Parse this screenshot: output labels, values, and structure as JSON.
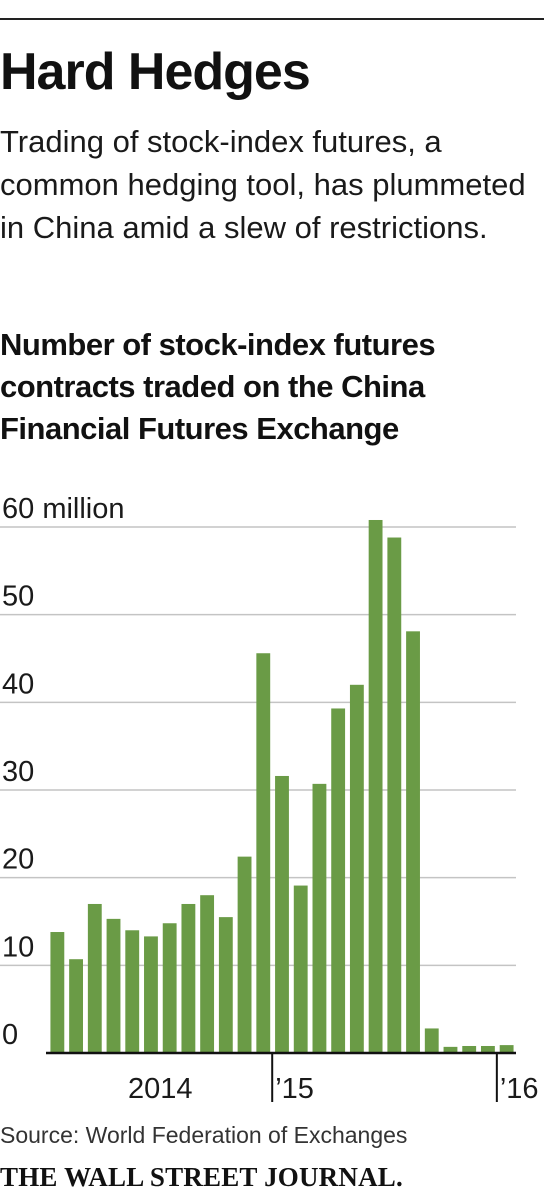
{
  "header": {
    "headline": "Hard Hedges",
    "dek": "Trading of stock-index futures, a common hedging tool, has plummeted in China amid a slew of restrictions."
  },
  "chart_data": {
    "type": "bar",
    "title": "Number of stock-index futures contracts traded on the China Financial Futures Exchange",
    "xlabel": "",
    "ylabel": "",
    "unit_label": "million",
    "ylim": [
      0,
      60
    ],
    "yticks": [
      0,
      10,
      20,
      30,
      40,
      50,
      60
    ],
    "ytick_labels": [
      "0",
      "10",
      "20",
      "30",
      "40",
      "50",
      "60 million"
    ],
    "grid": true,
    "legend": "none",
    "bar_color": "#6a9b46",
    "x_labels": [
      {
        "label": "2014",
        "index": 0
      },
      {
        "label": "’15",
        "index": 12
      },
      {
        "label": "’16",
        "index": 24
      }
    ],
    "values": [
      13.8,
      10.7,
      17.0,
      15.3,
      14.0,
      13.3,
      14.8,
      17.0,
      18.0,
      15.5,
      22.4,
      45.6,
      31.6,
      19.1,
      30.7,
      39.3,
      42.0,
      60.8,
      58.8,
      48.1,
      2.8,
      0.7,
      0.8,
      0.8,
      0.9
    ]
  },
  "footer": {
    "source": "Source: World Federation of Exchanges",
    "logo": "THE WALL STREET JOURNAL."
  }
}
